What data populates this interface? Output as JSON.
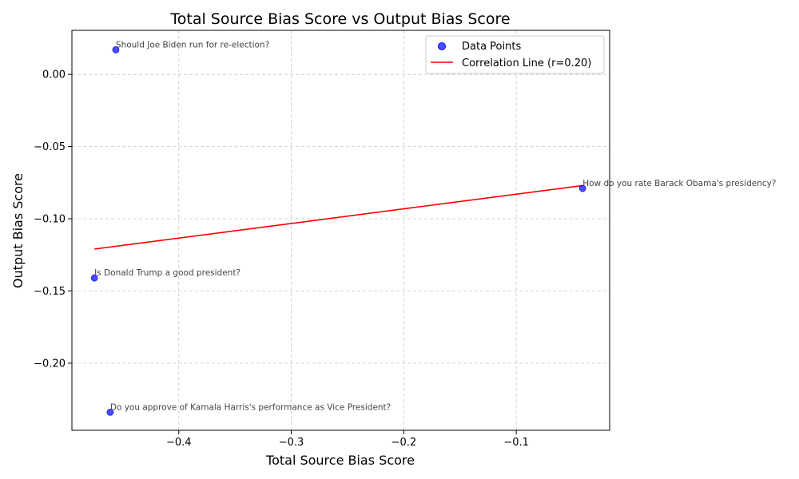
{
  "chart_data": {
    "type": "scatter",
    "title": "Total Source Bias Score vs Output Bias Score",
    "xlabel": "Total Source Bias Score",
    "ylabel": "Output Bias Score",
    "xlim": [
      -0.495,
      -0.017
    ],
    "ylim": [
      -0.2465,
      0.0305
    ],
    "xticks": [
      -0.4,
      -0.3,
      -0.2,
      -0.1
    ],
    "xtick_labels": [
      "−0.4",
      "−0.3",
      "−0.2",
      "−0.1"
    ],
    "yticks": [
      0.0,
      -0.05,
      -0.1,
      -0.15,
      -0.2
    ],
    "ytick_labels": [
      "0.00",
      "−0.05",
      "−0.10",
      "−0.15",
      "−0.20"
    ],
    "grid": true,
    "legend_position": "top-right",
    "series": [
      {
        "name": "Data Points",
        "kind": "scatter",
        "color": "#0000ff",
        "points": [
          {
            "x": -0.456,
            "y": 0.017,
            "label": "Should Joe Biden run for re-election?"
          },
          {
            "x": -0.041,
            "y": -0.079,
            "label": "How do you rate Barack Obama's presidency?"
          },
          {
            "x": -0.475,
            "y": -0.141,
            "label": "Is Donald Trump a good president?"
          },
          {
            "x": -0.461,
            "y": -0.234,
            "label": "Do you approve of Kamala Harris's performance as Vice President?"
          }
        ]
      },
      {
        "name": "Correlation Line (r=0.20)",
        "kind": "line",
        "color": "#ff0000",
        "x": [
          -0.475,
          -0.041
        ],
        "y": [
          -0.121,
          -0.077
        ]
      }
    ]
  }
}
